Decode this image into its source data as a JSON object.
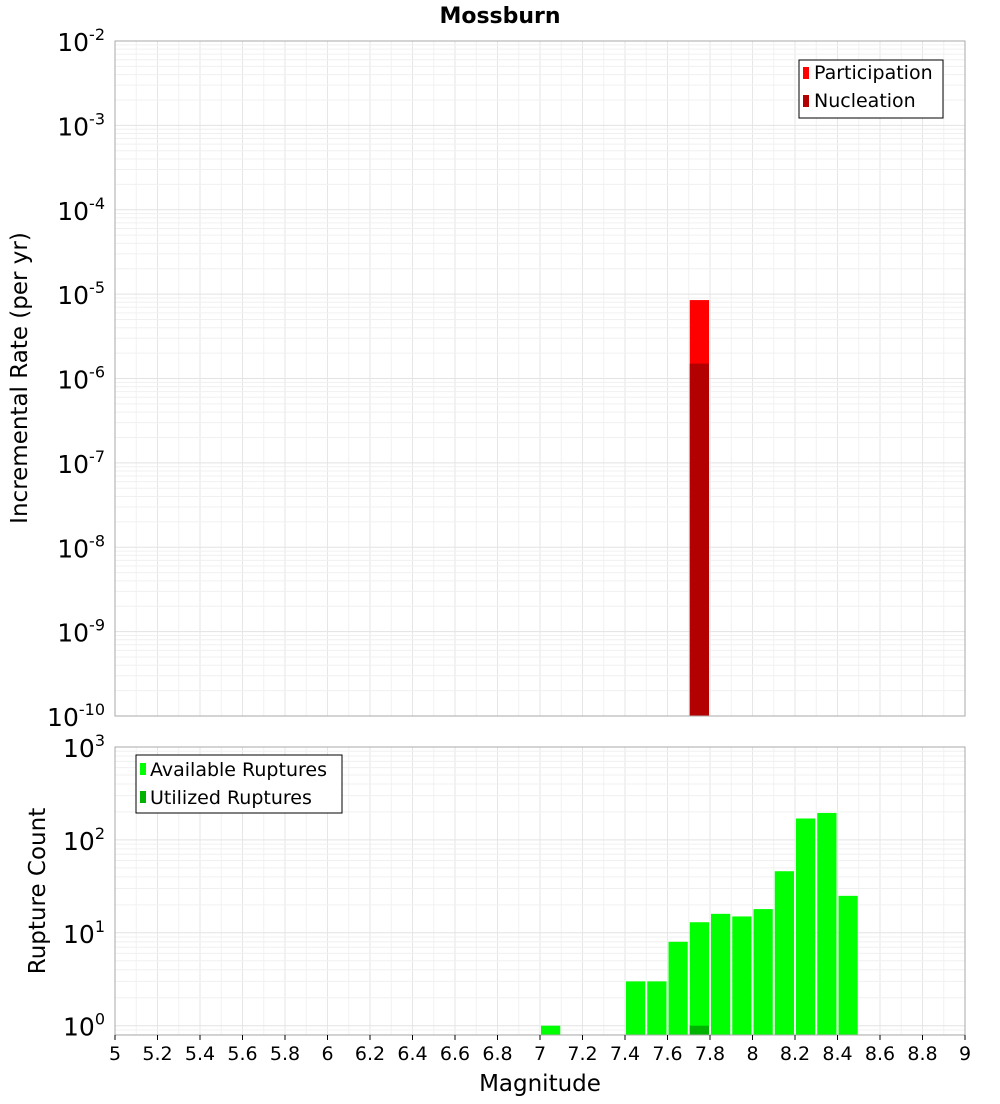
{
  "chart_data": [
    {
      "type": "bar",
      "title": "Mossburn",
      "xlabel": "",
      "ylabel": "Incremental Rate (per yr)",
      "yscale": "log",
      "ylim_exponents": [
        -10,
        -2
      ],
      "xlim": [
        5,
        9
      ],
      "grid": true,
      "legend_position": "top-right",
      "series": [
        {
          "name": "Participation",
          "color": "#ff0000",
          "bars": [
            {
              "x": 7.75,
              "y": 8.5e-06
            }
          ]
        },
        {
          "name": "Nucleation",
          "color": "#b30000",
          "bars": [
            {
              "x": 7.75,
              "y": 1.5e-06
            }
          ]
        }
      ],
      "ytick_exponents": [
        "-2",
        "-3",
        "-4",
        "-5",
        "-6",
        "-7",
        "-8",
        "-9",
        "-10"
      ]
    },
    {
      "type": "bar",
      "title": "",
      "xlabel": "Magnitude",
      "ylabel": "Rupture Count",
      "yscale": "log",
      "ylim_exponents": [
        -0.1,
        3
      ],
      "xlim": [
        5,
        9
      ],
      "grid": true,
      "legend_position": "top-left",
      "series": [
        {
          "name": "Available Ruptures",
          "color": "#00ff00",
          "bars": [
            {
              "x": 7.05,
              "y": 1
            },
            {
              "x": 7.45,
              "y": 3
            },
            {
              "x": 7.55,
              "y": 3
            },
            {
              "x": 7.65,
              "y": 8
            },
            {
              "x": 7.75,
              "y": 13
            },
            {
              "x": 7.85,
              "y": 16
            },
            {
              "x": 7.95,
              "y": 15
            },
            {
              "x": 8.05,
              "y": 18
            },
            {
              "x": 8.15,
              "y": 46
            },
            {
              "x": 8.25,
              "y": 170
            },
            {
              "x": 8.35,
              "y": 195
            },
            {
              "x": 8.45,
              "y": 25
            }
          ]
        },
        {
          "name": "Utilized Ruptures",
          "color": "#00b300",
          "bars": [
            {
              "x": 7.75,
              "y": 1
            }
          ]
        }
      ],
      "ytick_exponents": [
        "3",
        "2",
        "1",
        "0"
      ],
      "xticks": [
        "5",
        "5.2",
        "5.4",
        "5.6",
        "5.8",
        "6",
        "6.2",
        "6.4",
        "6.6",
        "6.8",
        "7",
        "7.2",
        "7.4",
        "7.6",
        "7.8",
        "8",
        "8.2",
        "8.4",
        "8.6",
        "8.8",
        "9"
      ]
    }
  ]
}
